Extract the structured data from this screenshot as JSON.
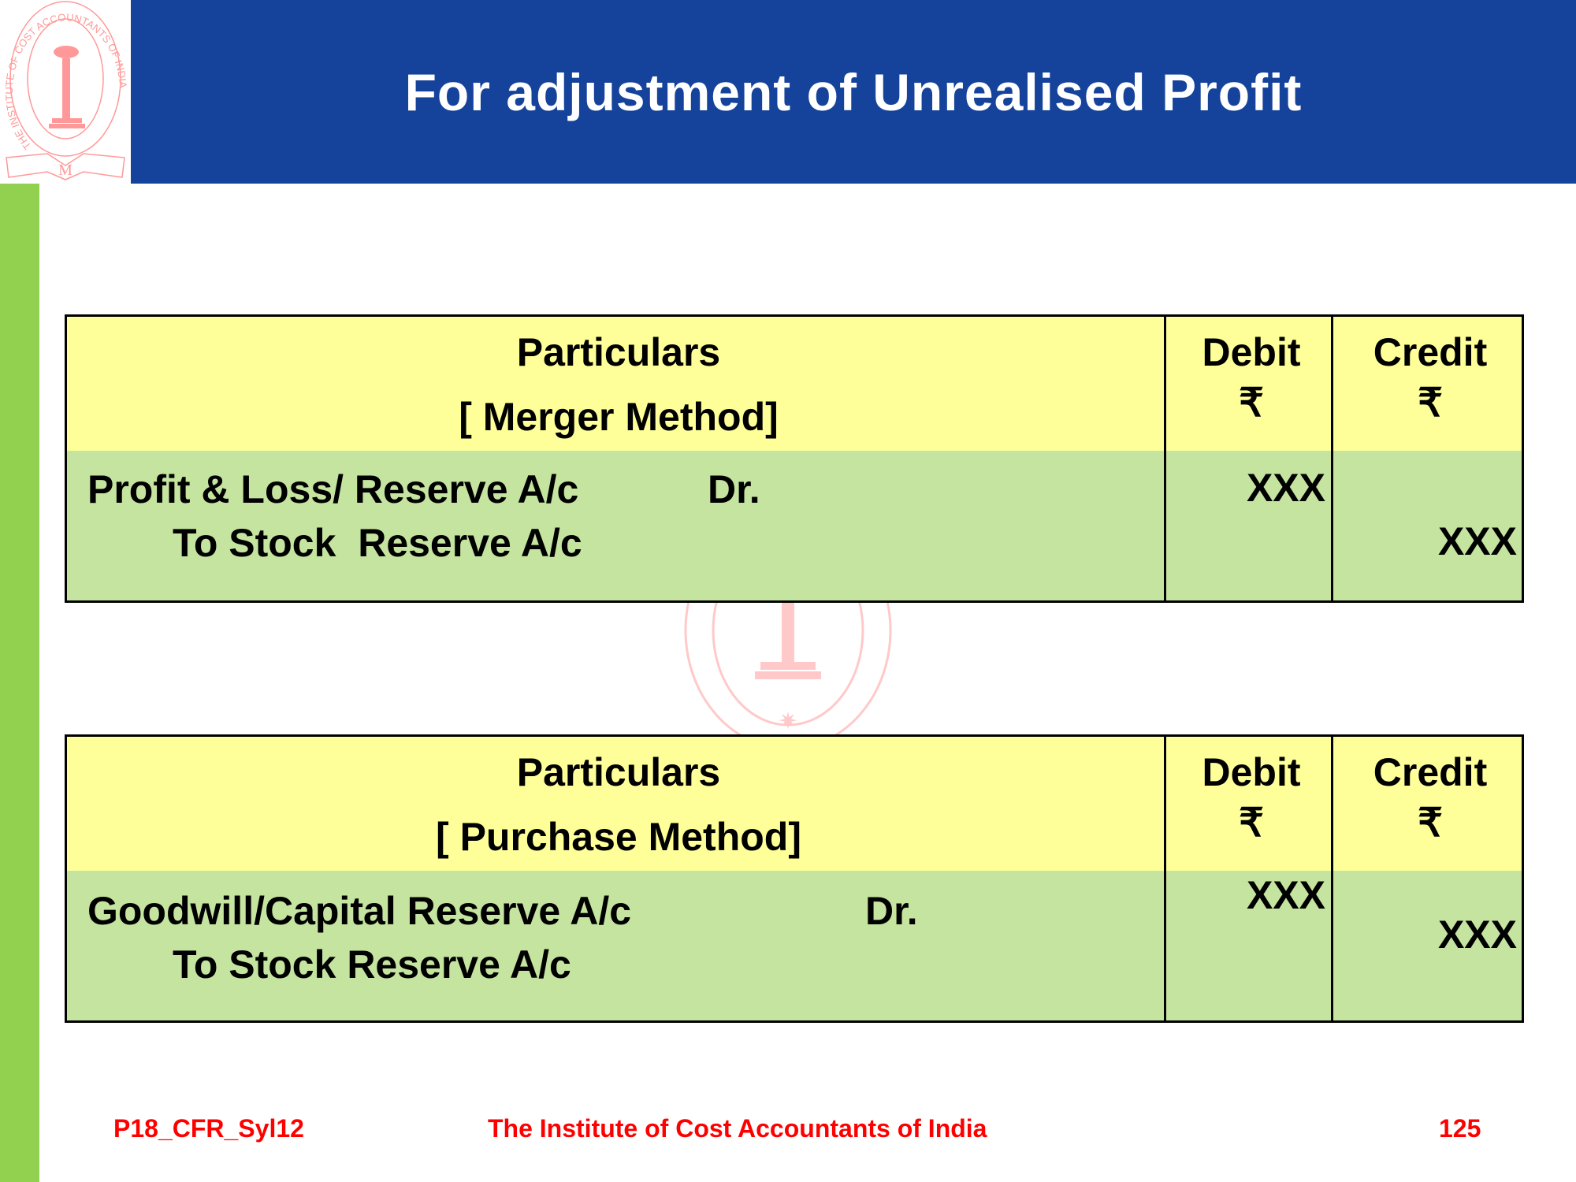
{
  "slide": {
    "title": "For adjustment of Unrealised Profit",
    "logo_text": "THE INSTITUTE OF COST ACCOUNTANTS OF INDIA",
    "colors": {
      "header": "#15439b",
      "sidebar": "#92d050",
      "table_header": "#ffff99",
      "table_body": "#c4e4a0",
      "footer_text": "#ff0000"
    }
  },
  "tables": [
    {
      "header": {
        "particulars": "Particulars",
        "method": "[ Merger Method]",
        "debit": "Debit",
        "credit": "Credit",
        "currency": "₹"
      },
      "entry": {
        "debit_account": "Profit & Loss/ Reserve A/c",
        "dr": "Dr.",
        "credit_account": "To Stock  Reserve A/c",
        "debit_amount": "XXX",
        "credit_amount": "XXX"
      }
    },
    {
      "header": {
        "particulars": "Particulars",
        "method": "[ Purchase Method]",
        "debit": "Debit",
        "credit": "Credit",
        "currency": "₹"
      },
      "entry": {
        "debit_account": "Goodwill/Capital Reserve A/c",
        "dr": "Dr.",
        "credit_account": "To Stock Reserve A/c",
        "debit_amount": "XXX",
        "credit_amount": "XXX"
      }
    }
  ],
  "footer": {
    "code": "P18_CFR_Syl12",
    "institute": "The Institute of Cost Accountants of India",
    "page": "125"
  }
}
